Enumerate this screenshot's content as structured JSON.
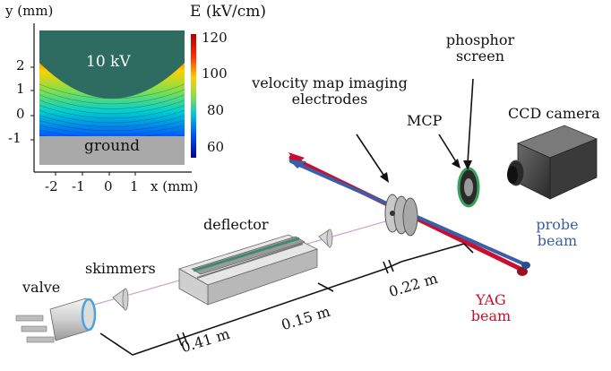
{
  "inset": {
    "y_axis_label": "y (mm)",
    "x_axis_label": "x (mm)",
    "y_ticks": [
      "2",
      "1",
      "0",
      "-1"
    ],
    "x_ticks": [
      "-2",
      "-1",
      "0",
      "1"
    ],
    "top_region_label": "10 kV",
    "bottom_region_label": "ground",
    "colorbar": {
      "title": "E (kV/cm)",
      "ticks": [
        "120",
        "100",
        "80",
        "60"
      ]
    }
  },
  "labels": {
    "valve": "valve",
    "skimmers": "skimmers",
    "deflector": "deflector",
    "vmi_line1": "velocity map imaging",
    "vmi_line2": "electrodes",
    "mcp": "MCP",
    "phosphor_line1": "phosphor",
    "phosphor_line2": "screen",
    "ccd": "CCD camera",
    "probe_line1": "probe",
    "probe_line2": "beam",
    "yag_line1": "YAG",
    "yag_line2": "beam"
  },
  "distances": {
    "d1": "0.41 m",
    "d2": "0.15 m",
    "d3": "0.22 m"
  },
  "colors": {
    "electrode_fill": "#2e6b60",
    "ground_fill": "#a9a9a9",
    "yag_beam": "#c8102e",
    "probe_beam": "#3a5fa8"
  }
}
